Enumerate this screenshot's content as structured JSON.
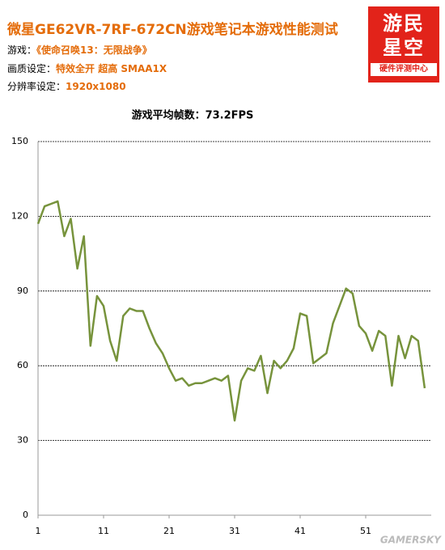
{
  "header": {
    "title": "微星GE62VR-7RF-672CN游戏笔记本游戏性能测试",
    "lines": [
      {
        "label": "游戏：",
        "value": "《使命召唤13：无限战争》"
      },
      {
        "label": "画质设定：",
        "value": "特效全开  超高  SMAA1X"
      },
      {
        "label": "分辨率设定：",
        "value": "1920x1080"
      }
    ],
    "logo": [
      "游民",
      "星空",
      "硬件评测中心"
    ]
  },
  "watermark": "GAMERSKY",
  "chart_data": {
    "type": "line",
    "title": "游戏平均帧数：73.2FPS",
    "x": [
      1,
      2,
      3,
      4,
      5,
      6,
      7,
      8,
      9,
      10,
      11,
      12,
      13,
      14,
      15,
      16,
      17,
      18,
      19,
      20,
      21,
      22,
      23,
      24,
      25,
      26,
      27,
      28,
      29,
      30,
      31,
      32,
      33,
      34,
      35,
      36,
      37,
      38,
      39,
      40,
      41,
      42,
      43,
      44,
      45,
      46,
      47,
      48,
      49,
      50,
      51,
      52,
      53,
      54,
      55,
      56,
      57,
      58,
      59,
      60
    ],
    "series": [
      {
        "color": "#77933c",
        "values": [
          117,
          124,
          125,
          126,
          112,
          119,
          99,
          112,
          68,
          88,
          84,
          70,
          62,
          80,
          83,
          82,
          82,
          75,
          69,
          65,
          59,
          54,
          55,
          52,
          53,
          53,
          54,
          55,
          54,
          56,
          38,
          54,
          59,
          58,
          64,
          49,
          62,
          59,
          62,
          67,
          81,
          80,
          61,
          63,
          65,
          77,
          84,
          91,
          89,
          76,
          73,
          66,
          74,
          72,
          52,
          72,
          63,
          72,
          70,
          51
        ]
      }
    ],
    "xlim": [
      1,
      61
    ],
    "xticks": [
      1,
      11,
      21,
      31,
      41,
      51
    ],
    "ylim": [
      0,
      150
    ],
    "yticks": [
      0,
      30,
      60,
      90,
      120,
      150
    ],
    "grid": true
  }
}
